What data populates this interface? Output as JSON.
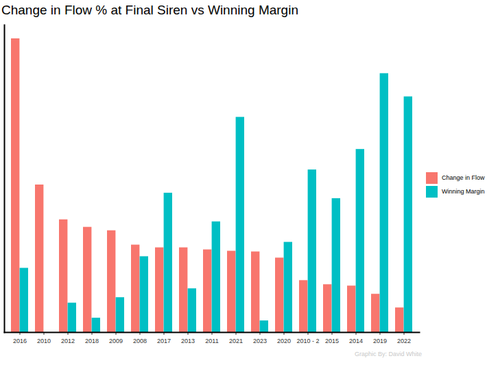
{
  "chart_data": {
    "type": "bar",
    "title": "Change in Flow % at Final Siren vs Winning Margin",
    "caption": "Graphic By: David White",
    "categories": [
      "2016",
      "2010",
      "2012",
      "2018",
      "2009",
      "2008",
      "2017",
      "2013",
      "2011",
      "2021",
      "2023",
      "2020",
      "2010 - 2",
      "2015",
      "2014",
      "2019",
      "2022"
    ],
    "series": [
      {
        "name": "Change in Flow",
        "color": "#F8766D",
        "values": [
          430,
          216,
          165,
          154,
          149,
          128,
          124,
          124,
          121,
          119,
          118,
          109,
          76,
          70,
          68,
          56,
          36
        ]
      },
      {
        "name": "Winning Margin",
        "color": "#00BFC4",
        "values": [
          94,
          0,
          43,
          21,
          51,
          111,
          204,
          64,
          162,
          315,
          17,
          132,
          238,
          196,
          268,
          379,
          345
        ]
      }
    ],
    "ylim": [
      0,
      450
    ],
    "tick_labels": "x",
    "legend": "right"
  }
}
